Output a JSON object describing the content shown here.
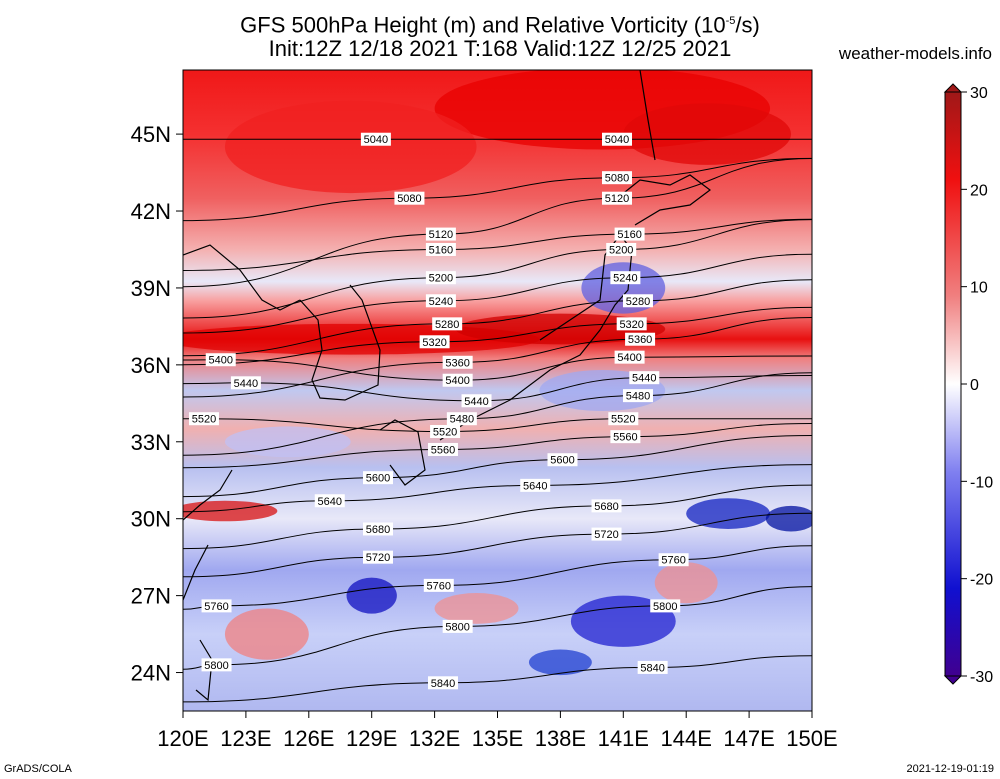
{
  "title": {
    "line1_pre": "GFS 500hPa Height (m) and Relative Vorticity (10",
    "line1_sup": "-5",
    "line1_post": "/s)",
    "line2": "Init:12Z 12/18 2021 T:168 Valid:12Z 12/25 2021"
  },
  "site": "weather-models.info",
  "footer": {
    "left": "GrADS/COLA",
    "right": "2021-12-19-01:19"
  },
  "map": {
    "lon_range": [
      120,
      150
    ],
    "lat_range": [
      22.5,
      47.5
    ],
    "x_ticks": [
      "120E",
      "123E",
      "126E",
      "129E",
      "132E",
      "135E",
      "138E",
      "141E",
      "144E",
      "147E",
      "150E"
    ],
    "x_tick_values": [
      120,
      123,
      126,
      129,
      132,
      135,
      138,
      141,
      144,
      147,
      150
    ],
    "y_ticks": [
      "24N",
      "27N",
      "30N",
      "33N",
      "36N",
      "39N",
      "42N",
      "45N"
    ],
    "y_tick_values": [
      24,
      27,
      30,
      33,
      36,
      39,
      42,
      45
    ]
  },
  "colorbar": {
    "labels": [
      "30",
      "20",
      "10",
      "0",
      "-10",
      "-20",
      "-30"
    ],
    "values": [
      30,
      20,
      10,
      0,
      -10,
      -20,
      -30
    ],
    "colors": {
      "max": "#a01818",
      "high": "#f01010",
      "mid_high": "#f08080",
      "zero": "#ffffff",
      "mid_low": "#8080f0",
      "low": "#1010d0",
      "min": "#400090"
    }
  },
  "contours": [
    {
      "label": "5040",
      "labels": [
        {
          "lon": 129.2,
          "lat": 44.8
        },
        {
          "lon": 140.7,
          "lat": 44.8
        }
      ]
    },
    {
      "label": "5080",
      "labels": [
        {
          "lon": 130.8,
          "lat": 42.5
        },
        {
          "lon": 140.7,
          "lat": 43.3
        }
      ]
    },
    {
      "label": "5120",
      "labels": [
        {
          "lon": 132.3,
          "lat": 41.1
        },
        {
          "lon": 140.7,
          "lat": 42.5
        }
      ]
    },
    {
      "label": "5160",
      "labels": [
        {
          "lon": 132.3,
          "lat": 40.5
        },
        {
          "lon": 141.3,
          "lat": 41.1
        }
      ]
    },
    {
      "label": "5200",
      "labels": [
        {
          "lon": 132.3,
          "lat": 39.4
        },
        {
          "lon": 140.9,
          "lat": 40.5
        }
      ]
    },
    {
      "label": "5240",
      "labels": [
        {
          "lon": 132.3,
          "lat": 38.5
        },
        {
          "lon": 141.1,
          "lat": 39.4
        }
      ]
    },
    {
      "label": "5280",
      "labels": [
        {
          "lon": 132.6,
          "lat": 37.6
        },
        {
          "lon": 141.7,
          "lat": 38.5
        }
      ]
    },
    {
      "label": "5320",
      "labels": [
        {
          "lon": 132.0,
          "lat": 36.9
        },
        {
          "lon": 141.4,
          "lat": 37.6
        }
      ]
    },
    {
      "label": "5360",
      "labels": [
        {
          "lon": 133.1,
          "lat": 36.1
        },
        {
          "lon": 141.8,
          "lat": 37.0
        }
      ]
    },
    {
      "label": "5400",
      "labels": [
        {
          "lon": 121.8,
          "lat": 36.2
        },
        {
          "lon": 133.1,
          "lat": 35.4
        },
        {
          "lon": 141.3,
          "lat": 36.3
        }
      ]
    },
    {
      "label": "5440",
      "labels": [
        {
          "lon": 123.0,
          "lat": 35.3
        },
        {
          "lon": 134.0,
          "lat": 34.6
        },
        {
          "lon": 142.0,
          "lat": 35.5
        }
      ]
    },
    {
      "label": "5480",
      "labels": [
        {
          "lon": 133.3,
          "lat": 33.9
        },
        {
          "lon": 141.7,
          "lat": 34.8
        }
      ]
    },
    {
      "label": "5520",
      "labels": [
        {
          "lon": 121.0,
          "lat": 33.9
        },
        {
          "lon": 132.5,
          "lat": 33.4
        },
        {
          "lon": 141.0,
          "lat": 33.9
        }
      ]
    },
    {
      "label": "5560",
      "labels": [
        {
          "lon": 132.4,
          "lat": 32.7
        },
        {
          "lon": 141.1,
          "lat": 33.2
        }
      ]
    },
    {
      "label": "5600",
      "labels": [
        {
          "lon": 129.3,
          "lat": 31.6
        },
        {
          "lon": 138.1,
          "lat": 32.3
        }
      ]
    },
    {
      "label": "5640",
      "labels": [
        {
          "lon": 127.0,
          "lat": 30.7
        },
        {
          "lon": 136.8,
          "lat": 31.3
        }
      ]
    },
    {
      "label": "5680",
      "labels": [
        {
          "lon": 129.3,
          "lat": 29.6
        },
        {
          "lon": 140.2,
          "lat": 30.5
        }
      ]
    },
    {
      "label": "5720",
      "labels": [
        {
          "lon": 129.3,
          "lat": 28.5
        },
        {
          "lon": 140.2,
          "lat": 29.4
        }
      ]
    },
    {
      "label": "5760",
      "labels": [
        {
          "lon": 121.6,
          "lat": 26.6
        },
        {
          "lon": 132.2,
          "lat": 27.4
        },
        {
          "lon": 143.4,
          "lat": 28.4
        }
      ]
    },
    {
      "label": "5800",
      "labels": [
        {
          "lon": 121.6,
          "lat": 24.3
        },
        {
          "lon": 133.1,
          "lat": 25.8
        },
        {
          "lon": 143.0,
          "lat": 26.6
        }
      ]
    },
    {
      "label": "5840",
      "labels": [
        {
          "lon": 132.4,
          "lat": 23.6
        },
        {
          "lon": 142.4,
          "lat": 24.2
        }
      ]
    }
  ]
}
